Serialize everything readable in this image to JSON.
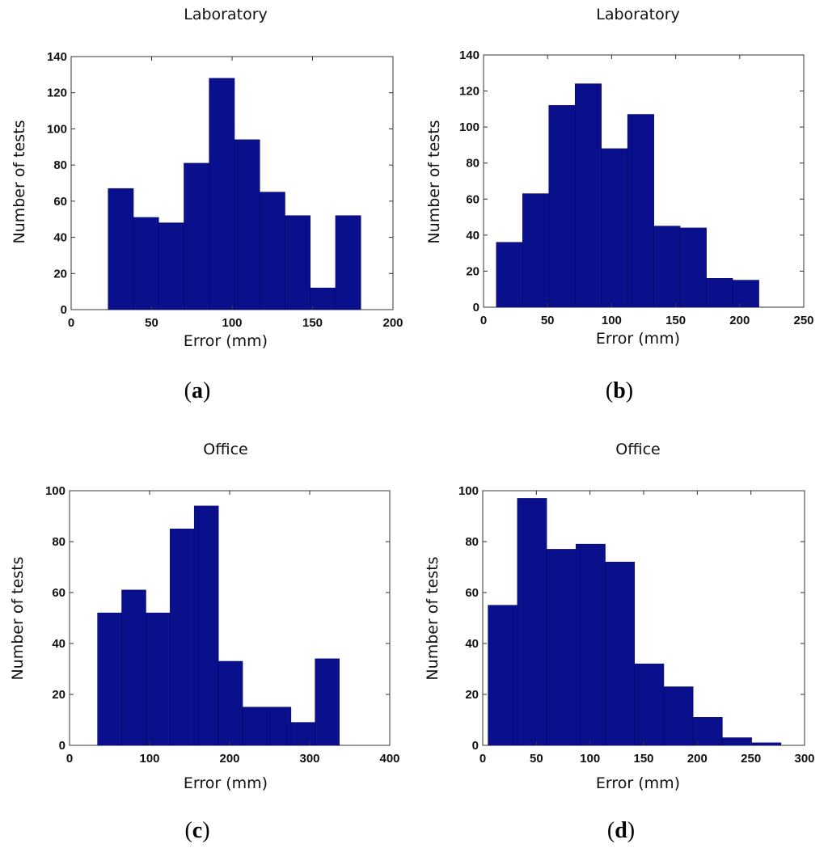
{
  "chart_data": [
    {
      "type": "bar",
      "panel_label": "a",
      "title": "Laboratory",
      "xlabel": "Error (mm)",
      "ylabel": "Number of tests",
      "xlim": [
        0,
        200
      ],
      "ylim": [
        0,
        140
      ],
      "xticks": [
        0,
        50,
        100,
        150,
        200
      ],
      "yticks": [
        0,
        20,
        40,
        60,
        80,
        100,
        120,
        140
      ],
      "bin_edges": [
        23,
        38.7,
        54.4,
        70.1,
        85.8,
        101.5,
        117.2,
        132.9,
        148.6,
        164.3,
        180
      ],
      "values": [
        67,
        51,
        48,
        81,
        128,
        94,
        65,
        52,
        12,
        52
      ],
      "bar_color": "#0a0f8c"
    },
    {
      "type": "bar",
      "panel_label": "b",
      "title": "Laboratory",
      "xlabel": "Error (mm)",
      "ylabel": "Number of tests",
      "xlim": [
        0,
        250
      ],
      "ylim": [
        0,
        140
      ],
      "xticks": [
        0,
        50,
        100,
        150,
        200,
        250
      ],
      "yticks": [
        0,
        20,
        40,
        60,
        80,
        100,
        120,
        140
      ],
      "bin_edges": [
        10,
        30.5,
        51,
        71.5,
        92,
        112.5,
        133,
        153.5,
        174,
        194.5,
        215
      ],
      "values": [
        36,
        63,
        112,
        124,
        88,
        107,
        45,
        44,
        16,
        15
      ],
      "bar_color": "#0a0f8c"
    },
    {
      "type": "bar",
      "panel_label": "c",
      "title": "Office",
      "xlabel": "Error (mm)",
      "ylabel": "Number of tests",
      "xlim": [
        0,
        400
      ],
      "ylim": [
        0,
        100
      ],
      "xticks": [
        0,
        100,
        200,
        300,
        400
      ],
      "yticks": [
        0,
        20,
        40,
        60,
        80,
        100
      ],
      "bin_edges": [
        35,
        65.2,
        95.4,
        125.6,
        155.8,
        186,
        216.2,
        246.4,
        276.6,
        306.8,
        337
      ],
      "values": [
        52,
        61,
        52,
        85,
        94,
        33,
        15,
        15,
        9,
        34
      ],
      "bar_color": "#0a0f8c"
    },
    {
      "type": "bar",
      "panel_label": "d",
      "title": "Office",
      "xlabel": "Error (mm)",
      "ylabel": "Number of tests",
      "xlim": [
        0,
        300
      ],
      "ylim": [
        0,
        100
      ],
      "xticks": [
        0,
        50,
        100,
        150,
        200,
        250,
        300
      ],
      "yticks": [
        0,
        20,
        40,
        60,
        80,
        100
      ],
      "bin_edges": [
        5,
        32.3,
        59.6,
        86.9,
        114.2,
        141.5,
        168.8,
        196.1,
        223.4,
        250.7,
        278
      ],
      "values": [
        55,
        97,
        77,
        79,
        72,
        32,
        23,
        11,
        3,
        1
      ],
      "bar_color": "#0a0f8c"
    }
  ]
}
